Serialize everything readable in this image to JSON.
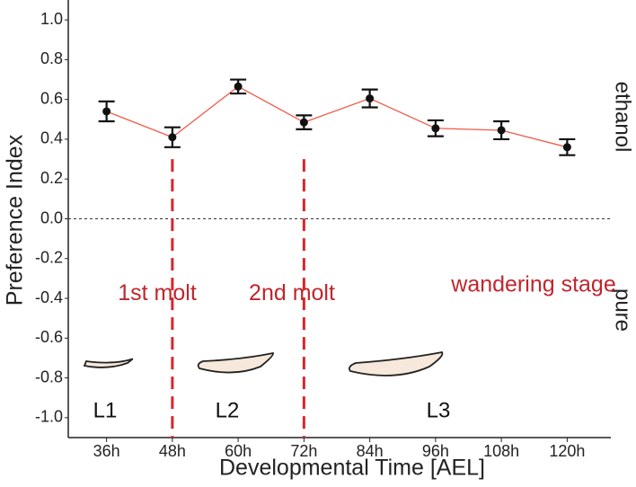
{
  "chart_data": {
    "type": "line",
    "xlabel": "Developmental Time [AEL]",
    "ylabel": "Preference Index",
    "categories": [
      "36h",
      "48h",
      "60h",
      "72h",
      "84h",
      "96h",
      "108h",
      "120h"
    ],
    "series": [
      {
        "color": "#f05a4a",
        "values": [
          0.54,
          0.41,
          0.665,
          0.485,
          0.605,
          0.455,
          0.445,
          0.36
        ],
        "errors": [
          0.05,
          0.05,
          0.035,
          0.035,
          0.045,
          0.04,
          0.045,
          0.04
        ]
      }
    ],
    "ylim": [
      -1.1,
      1.1
    ],
    "yticks": [
      {
        "value": 1,
        "label": "1.0"
      },
      0.8,
      0.6,
      0.4,
      0.2,
      {
        "value": 0,
        "label": "0.0"
      },
      -0.2,
      -0.4,
      -0.6,
      -0.8,
      {
        "value": -1,
        "label": "-1.0"
      }
    ],
    "molts": [
      "1st molt",
      "2nd molt"
    ],
    "stage_note": "wandering stage",
    "stages": [
      "L1",
      "L2",
      "L3"
    ],
    "side_labels": [
      "ethanol",
      "pure"
    ]
  }
}
